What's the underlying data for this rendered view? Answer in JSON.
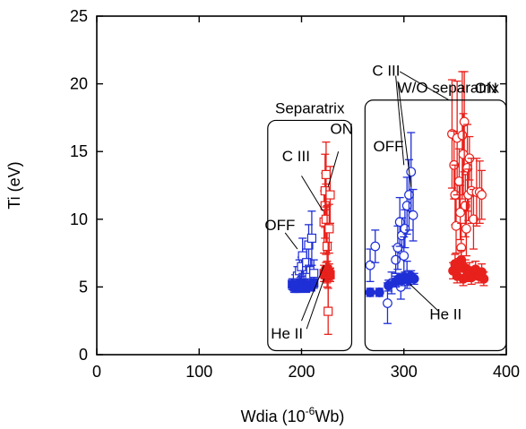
{
  "chart_data": {
    "type": "scatter",
    "title": "",
    "xlabel": "Wdia (10",
    "xlabel_exp": "-6",
    "xlabel_unit": "Wb)",
    "ylabel": "Ti (eV)",
    "xlim": [
      0,
      400
    ],
    "ylim": [
      0,
      25
    ],
    "x_ticks": [
      0,
      100,
      200,
      300,
      400
    ],
    "y_ticks": [
      0,
      5,
      10,
      15,
      20,
      25
    ],
    "grid": false,
    "colors": {
      "blue": "#1f2fd6",
      "red": "#e8211c",
      "black": "#000000"
    },
    "regions": [
      {
        "label": "Separatrix",
        "x_range": [
          167,
          249
        ],
        "y_range": [
          0.3,
          17.3
        ]
      },
      {
        "label": "W/O separatrix",
        "x_range": [
          262,
          400
        ],
        "y_range": [
          0.3,
          18.8
        ]
      }
    ],
    "annotations": [
      {
        "text": "ON",
        "x": 228,
        "y": 16.3
      },
      {
        "text": "C III",
        "x": 181,
        "y": 14.3
      },
      {
        "text": "OFF",
        "x": 164,
        "y": 9.2
      },
      {
        "text": "He II",
        "x": 170,
        "y": 1.2
      },
      {
        "text": "C III",
        "x": 269,
        "y": 20.6
      },
      {
        "text": "OFF",
        "x": 270,
        "y": 15.0
      },
      {
        "text": "ON",
        "x": 369,
        "y": 19.3
      },
      {
        "text": "He II",
        "x": 325,
        "y": 2.6
      }
    ],
    "series": [
      {
        "marker": "open-square",
        "color": "blue",
        "points": [
          {
            "x": 194,
            "y": 5.3,
            "err": 0.6
          },
          {
            "x": 196,
            "y": 5.8,
            "err": 0.7
          },
          {
            "x": 198,
            "y": 6.2,
            "err": 0.8
          },
          {
            "x": 200,
            "y": 6.5,
            "err": 0.7
          },
          {
            "x": 201,
            "y": 7.3,
            "err": 1.3
          },
          {
            "x": 205,
            "y": 6.8,
            "err": 1.0
          },
          {
            "x": 207,
            "y": 8.1,
            "err": 1.5
          },
          {
            "x": 208,
            "y": 5.7,
            "err": 0.8
          },
          {
            "x": 210,
            "y": 8.6,
            "err": 2.0
          },
          {
            "x": 212,
            "y": 6.0,
            "err": 1.0
          }
        ]
      },
      {
        "marker": "filled-square",
        "color": "blue",
        "points": [
          {
            "x": 191,
            "y": 5.2,
            "err": 0.4
          },
          {
            "x": 193,
            "y": 5.0,
            "err": 0.4
          },
          {
            "x": 195,
            "y": 4.9,
            "err": 0.3
          },
          {
            "x": 197,
            "y": 5.0,
            "err": 0.4
          },
          {
            "x": 199,
            "y": 5.3,
            "err": 0.4
          },
          {
            "x": 202,
            "y": 5.1,
            "err": 0.4
          },
          {
            "x": 204,
            "y": 4.9,
            "err": 0.3
          },
          {
            "x": 206,
            "y": 5.2,
            "err": 0.4
          },
          {
            "x": 209,
            "y": 5.0,
            "err": 0.3
          },
          {
            "x": 212,
            "y": 5.3,
            "err": 0.4
          }
        ]
      },
      {
        "marker": "open-square",
        "color": "red",
        "points": [
          {
            "x": 222,
            "y": 9.8,
            "err": 2.3
          },
          {
            "x": 223,
            "y": 11.0,
            "err": 2.4
          },
          {
            "x": 223,
            "y": 12.1,
            "err": 2.7
          },
          {
            "x": 224,
            "y": 13.3,
            "err": 2.4
          },
          {
            "x": 224,
            "y": 10.0,
            "err": 2.6
          },
          {
            "x": 225,
            "y": 8.0,
            "err": 3.0
          },
          {
            "x": 226,
            "y": 5.9,
            "err": 2.4
          },
          {
            "x": 226,
            "y": 3.2,
            "err": 1.7
          },
          {
            "x": 227,
            "y": 9.3,
            "err": 1.8
          },
          {
            "x": 228,
            "y": 11.8,
            "err": 2.1
          }
        ]
      },
      {
        "marker": "filled-square",
        "color": "red",
        "points": [
          {
            "x": 222,
            "y": 6.0,
            "err": 0.6
          },
          {
            "x": 223,
            "y": 5.9,
            "err": 0.5
          },
          {
            "x": 224,
            "y": 6.2,
            "err": 0.6
          },
          {
            "x": 225,
            "y": 5.8,
            "err": 0.5
          },
          {
            "x": 226,
            "y": 6.0,
            "err": 0.5
          },
          {
            "x": 227,
            "y": 6.1,
            "err": 0.6
          },
          {
            "x": 228,
            "y": 5.9,
            "err": 0.5
          },
          {
            "x": 225,
            "y": 6.3,
            "err": 0.6
          }
        ]
      },
      {
        "marker": "open-circle",
        "color": "blue",
        "points": [
          {
            "x": 267,
            "y": 6.6,
            "err": 1.2
          },
          {
            "x": 272,
            "y": 8.0,
            "err": 1.2
          },
          {
            "x": 284,
            "y": 3.8,
            "err": 1.5
          },
          {
            "x": 288,
            "y": 5.3,
            "err": 0.8
          },
          {
            "x": 292,
            "y": 7.0,
            "err": 1.0
          },
          {
            "x": 294,
            "y": 7.9,
            "err": 1.6
          },
          {
            "x": 296,
            "y": 9.8,
            "err": 1.8
          },
          {
            "x": 298,
            "y": 8.8,
            "err": 1.3
          },
          {
            "x": 300,
            "y": 7.3,
            "err": 1.4
          },
          {
            "x": 301,
            "y": 9.3,
            "err": 1.4
          },
          {
            "x": 303,
            "y": 11.0,
            "err": 2.1
          },
          {
            "x": 305,
            "y": 11.8,
            "err": 2.6
          },
          {
            "x": 307,
            "y": 13.5,
            "err": 2.9
          },
          {
            "x": 309,
            "y": 10.3,
            "err": 1.9
          },
          {
            "x": 303,
            "y": 5.9,
            "err": 1.0
          },
          {
            "x": 297,
            "y": 5.0,
            "err": 0.9
          }
        ]
      },
      {
        "marker": "filled-circle",
        "color": "blue",
        "points": [
          {
            "x": 267,
            "y": 4.6,
            "err": 0.3
          },
          {
            "x": 276,
            "y": 4.6,
            "err": 0.3
          },
          {
            "x": 285,
            "y": 5.1,
            "err": 0.4
          },
          {
            "x": 292,
            "y": 5.4,
            "err": 0.4
          },
          {
            "x": 295,
            "y": 5.6,
            "err": 0.4
          },
          {
            "x": 298,
            "y": 5.5,
            "err": 0.4
          },
          {
            "x": 301,
            "y": 5.7,
            "err": 0.4
          },
          {
            "x": 304,
            "y": 5.5,
            "err": 0.4
          },
          {
            "x": 307,
            "y": 5.8,
            "err": 0.4
          },
          {
            "x": 310,
            "y": 5.6,
            "err": 0.4
          }
        ]
      },
      {
        "marker": "open-circle",
        "color": "red",
        "points": [
          {
            "x": 347,
            "y": 16.3,
            "err": 4.0
          },
          {
            "x": 349,
            "y": 14.0,
            "err": 2.5
          },
          {
            "x": 350,
            "y": 11.8,
            "err": 2.2
          },
          {
            "x": 351,
            "y": 9.5,
            "err": 2.0
          },
          {
            "x": 352,
            "y": 16.0,
            "err": 4.2
          },
          {
            "x": 354,
            "y": 12.8,
            "err": 2.4
          },
          {
            "x": 355,
            "y": 10.5,
            "err": 2.0
          },
          {
            "x": 356,
            "y": 7.9,
            "err": 1.8
          },
          {
            "x": 357,
            "y": 16.2,
            "err": 4.7
          },
          {
            "x": 358,
            "y": 14.8,
            "err": 3.0
          },
          {
            "x": 359,
            "y": 17.2,
            "err": 3.7
          },
          {
            "x": 360,
            "y": 11.0,
            "err": 2.3
          },
          {
            "x": 361,
            "y": 9.3,
            "err": 2.0
          },
          {
            "x": 362,
            "y": 13.8,
            "err": 3.2
          },
          {
            "x": 363,
            "y": 11.8,
            "err": 1.9
          },
          {
            "x": 364,
            "y": 14.5,
            "err": 1.6
          },
          {
            "x": 366,
            "y": 12.1,
            "err": 2.4
          },
          {
            "x": 368,
            "y": 10.0,
            "err": 2.2
          },
          {
            "x": 371,
            "y": 12.0,
            "err": 2.5
          },
          {
            "x": 374,
            "y": 12.0,
            "err": 2.3
          },
          {
            "x": 376,
            "y": 11.8,
            "err": 1.8
          }
        ]
      },
      {
        "marker": "filled-circle",
        "color": "red",
        "points": [
          {
            "x": 348,
            "y": 6.2,
            "err": 0.6
          },
          {
            "x": 350,
            "y": 6.7,
            "err": 0.7
          },
          {
            "x": 352,
            "y": 5.8,
            "err": 0.5
          },
          {
            "x": 354,
            "y": 6.5,
            "err": 0.6
          },
          {
            "x": 356,
            "y": 7.0,
            "err": 0.7
          },
          {
            "x": 358,
            "y": 5.6,
            "err": 0.5
          },
          {
            "x": 360,
            "y": 6.4,
            "err": 0.6
          },
          {
            "x": 362,
            "y": 5.9,
            "err": 0.5
          },
          {
            "x": 364,
            "y": 6.2,
            "err": 0.6
          },
          {
            "x": 366,
            "y": 5.7,
            "err": 0.5
          },
          {
            "x": 370,
            "y": 6.3,
            "err": 0.6
          },
          {
            "x": 373,
            "y": 5.8,
            "err": 0.5
          },
          {
            "x": 376,
            "y": 6.1,
            "err": 0.6
          },
          {
            "x": 378,
            "y": 5.6,
            "err": 0.5
          }
        ]
      }
    ]
  }
}
